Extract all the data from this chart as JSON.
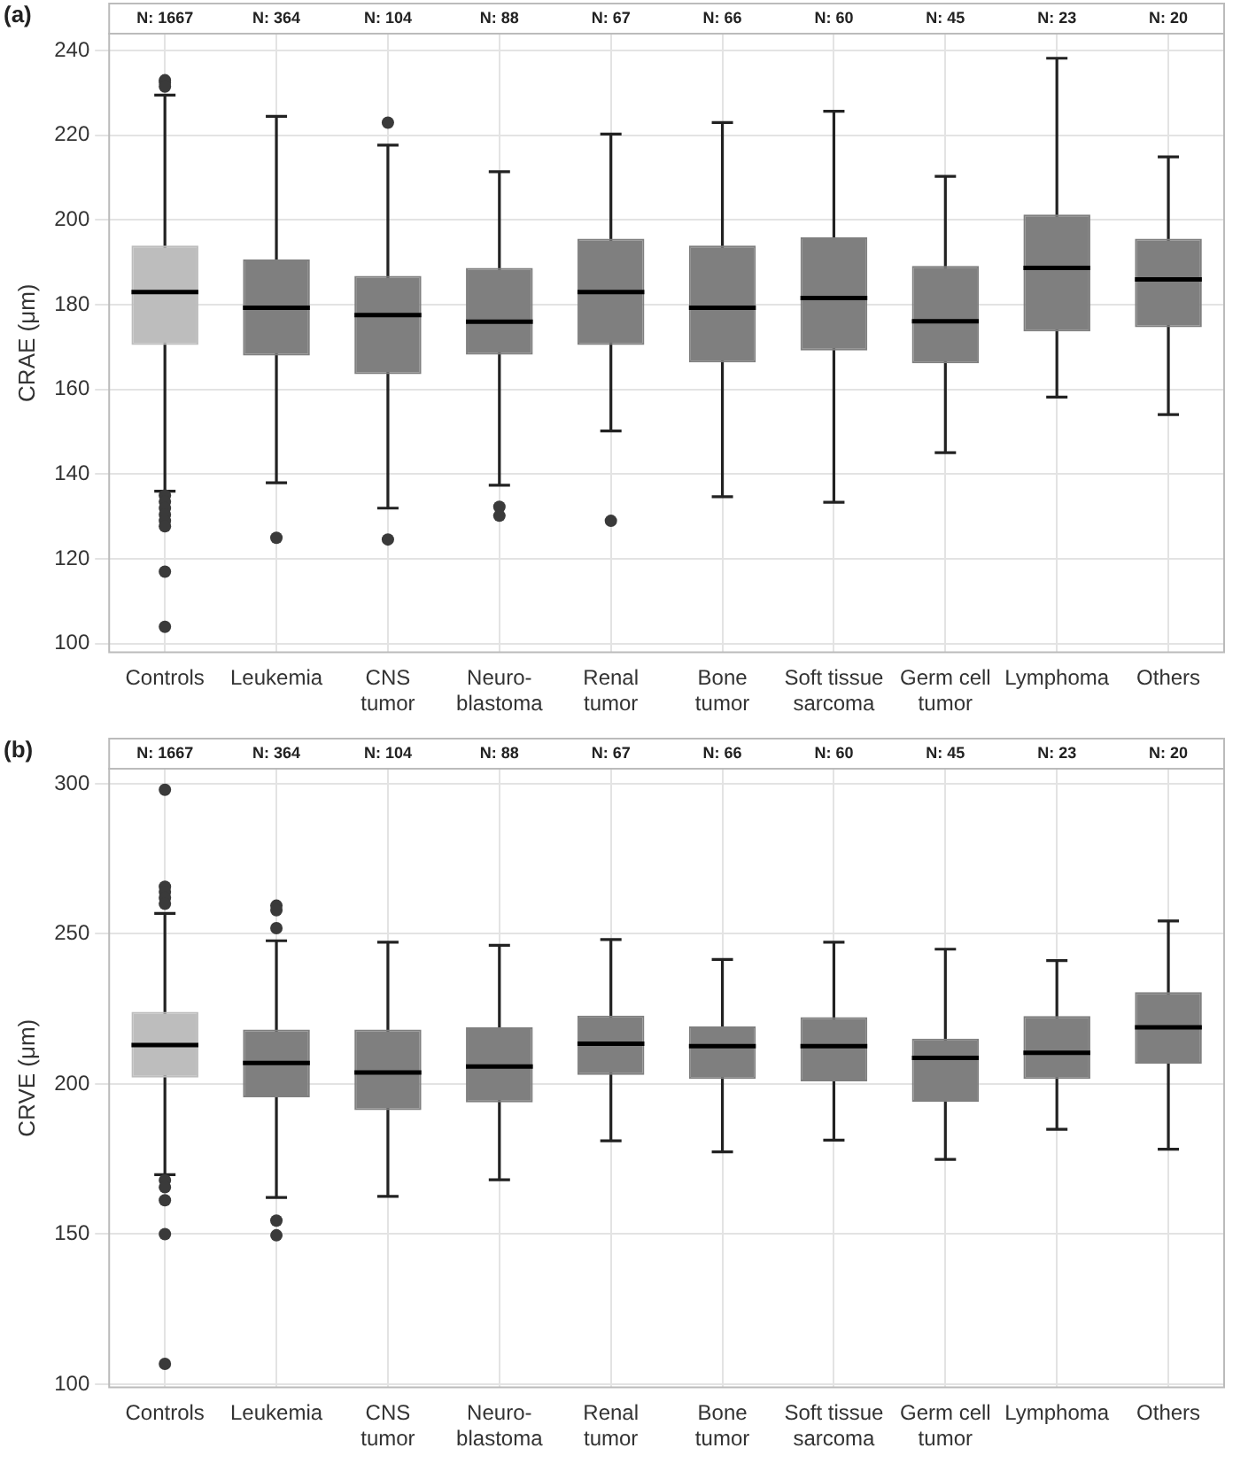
{
  "chart_data": [
    {
      "type": "box",
      "title": "(a)",
      "ylabel": "CRAE (μm)",
      "categories": [
        "Controls",
        "Leukemia",
        "CNS\ntumor",
        "Neuro-\nblastoma",
        "Renal\ntumor",
        "Bone\ntumor",
        "Soft tissue\nsarcoma",
        "Germ cell\ntumor",
        "Lymphoma",
        "Others"
      ],
      "ylim": [
        98,
        244
      ],
      "yticks": [
        100,
        120,
        140,
        160,
        180,
        200,
        220,
        240
      ],
      "grid": true,
      "legend": false,
      "series": [
        {
          "colors": [
            "#bdbdbd",
            "#7f7f7f",
            "#7f7f7f",
            "#7f7f7f",
            "#7f7f7f",
            "#7f7f7f",
            "#7f7f7f",
            "#7f7f7f",
            "#7f7f7f",
            "#7f7f7f"
          ],
          "boxes": [
            {
              "low": 136,
              "q1": 170.5,
              "median": 183,
              "q3": 194,
              "high": 229.5,
              "outliers": [
                233,
                232.5,
                231.5,
                135,
                133.5,
                132,
                130.5,
                129,
                127.7,
                117,
                104
              ]
            },
            {
              "low": 138,
              "q1": 168,
              "median": 179.3,
              "q3": 190.7,
              "high": 224.5,
              "outliers": [
                125
              ]
            },
            {
              "low": 132,
              "q1": 163.6,
              "median": 177.6,
              "q3": 186.8,
              "high": 217.7,
              "outliers": [
                223,
                124.6
              ]
            },
            {
              "low": 137.4,
              "q1": 168.2,
              "median": 176,
              "q3": 188.7,
              "high": 211.4,
              "outliers": [
                132.3,
                130.2
              ]
            },
            {
              "low": 150.2,
              "q1": 170.5,
              "median": 183,
              "q3": 195.6,
              "high": 220.3,
              "outliers": [
                129
              ]
            },
            {
              "low": 134.7,
              "q1": 166.4,
              "median": 179.3,
              "q3": 194,
              "high": 223
            },
            {
              "low": 133.4,
              "q1": 169.2,
              "median": 181.6,
              "q3": 195.9,
              "high": 225.7
            },
            {
              "low": 145.1,
              "q1": 166.2,
              "median": 176.1,
              "q3": 189.2,
              "high": 210.3
            },
            {
              "low": 158.2,
              "q1": 173.7,
              "median": 188.7,
              "q3": 201.3,
              "high": 238.2
            },
            {
              "low": 154.1,
              "q1": 174.7,
              "median": 186,
              "q3": 195.6,
              "high": 214.9
            }
          ]
        }
      ],
      "annotations": [
        "N: 1667",
        "N: 364",
        "N: 104",
        "N: 88",
        "N: 67",
        "N: 66",
        "N: 60",
        "N: 45",
        "N: 23",
        "N: 20"
      ]
    },
    {
      "type": "box",
      "title": "(b)",
      "ylabel": "CRVE (μm)",
      "categories": [
        "Controls",
        "Leukemia",
        "CNS\ntumor",
        "Neuro-\nblastoma",
        "Renal\ntumor",
        "Bone\ntumor",
        "Soft tissue\nsarcoma",
        "Germ cell\ntumor",
        "Lymphoma",
        "Others"
      ],
      "ylim": [
        99,
        305
      ],
      "yticks": [
        100,
        150,
        200,
        250,
        300
      ],
      "grid": true,
      "legend": false,
      "series": [
        {
          "colors": [
            "#bdbdbd",
            "#7f7f7f",
            "#7f7f7f",
            "#7f7f7f",
            "#7f7f7f",
            "#7f7f7f",
            "#7f7f7f",
            "#7f7f7f",
            "#7f7f7f",
            "#7f7f7f"
          ],
          "boxes": [
            {
              "low": 169.8,
              "q1": 202.1,
              "median": 213,
              "q3": 224,
              "high": 256.8,
              "outliers": [
                298,
                265.7,
                264,
                262,
                260,
                167.9,
                165.6,
                161.3,
                150,
                106.8
              ]
            },
            {
              "low": 162.2,
              "q1": 195.6,
              "median": 207,
              "q3": 218.1,
              "high": 247.7,
              "outliers": [
                259.4,
                257.9,
                251.9,
                154.5,
                149.6
              ]
            },
            {
              "low": 162.6,
              "q1": 191.3,
              "median": 203.8,
              "q3": 218.1,
              "high": 247.2
            },
            {
              "low": 168.1,
              "q1": 193.9,
              "median": 205.8,
              "q3": 218.9,
              "high": 246.2
            },
            {
              "low": 181.1,
              "q1": 203,
              "median": 213.4,
              "q3": 222.8,
              "high": 248.1
            },
            {
              "low": 177.4,
              "q1": 201.7,
              "median": 212.6,
              "q3": 219.2,
              "high": 241.5
            },
            {
              "low": 181.3,
              "q1": 200.9,
              "median": 212.6,
              "q3": 222.3,
              "high": 247.2
            },
            {
              "low": 174.9,
              "q1": 194.1,
              "median": 208.7,
              "q3": 215.1,
              "high": 244.9
            },
            {
              "low": 184.9,
              "q1": 201.7,
              "median": 210.4,
              "q3": 222.6,
              "high": 241.1
            },
            {
              "low": 178.3,
              "q1": 206.8,
              "median": 218.9,
              "q3": 230.6,
              "high": 254.3
            }
          ]
        }
      ],
      "annotations": [
        "N: 1667",
        "N: 364",
        "N: 104",
        "N: 88",
        "N: 67",
        "N: 66",
        "N: 60",
        "N: 45",
        "N: 23",
        "N: 20"
      ]
    }
  ]
}
